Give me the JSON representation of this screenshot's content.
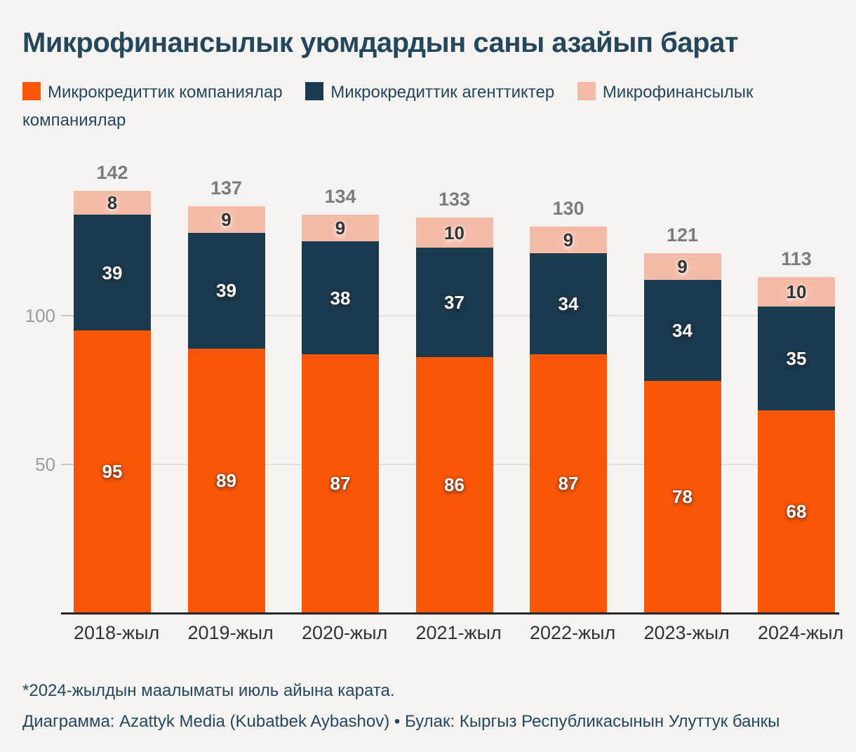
{
  "page": {
    "title": "Микрофинансылык уюмдардын саны азайып барат",
    "footnote": "*2024-жылдын маалыматы июль айына карата.",
    "credit": "Диаграмма: Azattyk Media (Kubatbek Aybashov) • Булак: Кыргыз Республикасынын Улуттук банкы"
  },
  "colors": {
    "background": "#F5F4F2",
    "text": "#25475C",
    "total_label": "#7C7C7C",
    "x_axis_label": "#333333",
    "y_tick_label": "#9B9B9B",
    "gridline": "#E0DFDB",
    "axis_line": "#262626"
  },
  "chart_data": {
    "type": "bar",
    "stacked": true,
    "title": "Микрофинансылык уюмдардын саны азайып барат",
    "categories": [
      "2018-жыл",
      "2019-жыл",
      "2020-жыл",
      "2021-жыл",
      "2022-жыл",
      "2023-жыл",
      "2024-жыл"
    ],
    "series": [
      {
        "name": "Микрокредиттик компаниялар",
        "color": "#FA5607",
        "value_label_color": "#FFFFFF",
        "values": [
          95,
          89,
          87,
          86,
          87,
          78,
          68
        ]
      },
      {
        "name": "Микрокредиттик агенттиктер",
        "color": "#1B3A4E",
        "value_label_color": "#FFFFFF",
        "values": [
          39,
          39,
          38,
          37,
          34,
          34,
          35
        ]
      },
      {
        "name": "Микрофинансылык компаниялар",
        "color": "#F5BBA9",
        "value_label_color": "#333333",
        "values": [
          8,
          9,
          9,
          10,
          9,
          9,
          10
        ]
      }
    ],
    "totals": [
      142,
      137,
      134,
      133,
      130,
      121,
      113
    ],
    "xlabel": "",
    "ylabel": "",
    "yticks": [
      50,
      100
    ],
    "ylim": [
      0,
      152
    ],
    "grid": true,
    "legend_position": "top"
  }
}
